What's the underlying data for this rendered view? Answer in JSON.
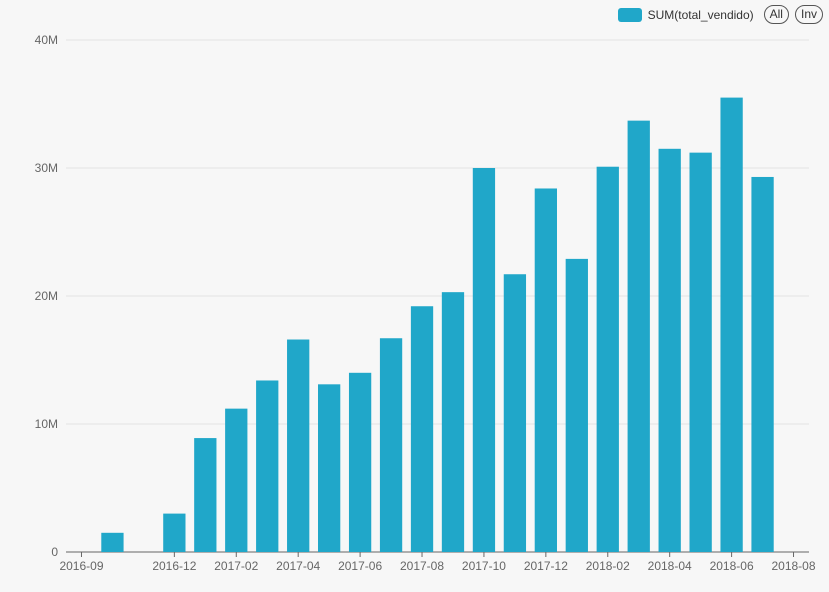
{
  "chart_data": {
    "type": "bar",
    "categories": [
      "2016-09",
      "2016-10",
      "2016-11",
      "2016-12",
      "2017-01",
      "2017-02",
      "2017-03",
      "2017-04",
      "2017-05",
      "2017-06",
      "2017-07",
      "2017-08",
      "2017-09",
      "2017-10",
      "2017-11",
      "2017-12",
      "2018-01",
      "2018-02",
      "2018-03",
      "2018-04",
      "2018-05",
      "2018-06",
      "2018-07",
      "2018-08"
    ],
    "x_tick_labels": [
      "2016-09",
      "2016-12",
      "2017-02",
      "2017-04",
      "2017-06",
      "2017-08",
      "2017-10",
      "2017-12",
      "2018-02",
      "2018-04",
      "2018-06",
      "2018-08"
    ],
    "series": [
      {
        "name": "SUM(total_vendido)",
        "color": "#20a7c9",
        "values": [
          0,
          1500000,
          0,
          3000000,
          8900000,
          11200000,
          13400000,
          16600000,
          13100000,
          14000000,
          16700000,
          19200000,
          20300000,
          30000000,
          21700000,
          28400000,
          22900000,
          30100000,
          33700000,
          31500000,
          31200000,
          35500000,
          29300000,
          0
        ]
      }
    ],
    "y_ticks": [
      0,
      10000000,
      20000000,
      30000000,
      40000000
    ],
    "y_tick_labels": [
      "0",
      "10M",
      "20M",
      "30M",
      "40M"
    ],
    "ylim": [
      0,
      40000000
    ],
    "grid": true,
    "legend_position": "top-right"
  },
  "legend": {
    "series_label": "SUM(total_vendido)",
    "all_button": "All",
    "inv_button": "Inv"
  }
}
